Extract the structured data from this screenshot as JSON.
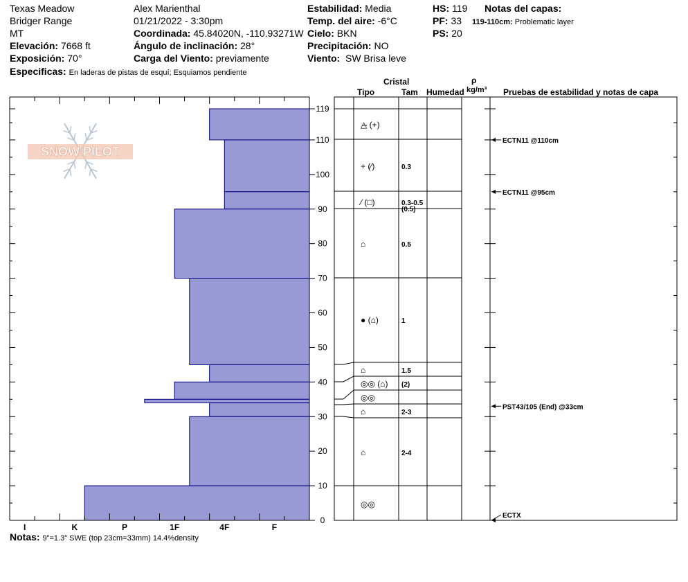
{
  "header": {
    "location": "Texas Meadow",
    "range": "Bridger Range",
    "state": "MT",
    "elevation_label": "Elevación:",
    "elevation_value": "7668 ft",
    "aspect_label": "Exposición:",
    "aspect_value": "70°",
    "specifics_label": "Especificas:",
    "specifics_value": "En laderas de pistas de esquí; Esquiamos pendiente",
    "observer": "Alex Marienthal",
    "datetime": "01/21/2022 - 3:30pm",
    "coord_label": "Coordinada:",
    "coord_value": "45.84020N, -110.93271W",
    "incline_label": "Ángulo de inclinación:",
    "incline_value": "28°",
    "wind_load_label": "Carga del Viento:",
    "wind_load_value": "previamente",
    "stability_label": "Estabilidad:",
    "stability_value": "Media",
    "air_temp_label": "Temp. del aire:",
    "air_temp_value": "-6°C",
    "sky_label": "Cielo:",
    "sky_value": "BKN",
    "precip_label": "Precipitación:",
    "precip_value": "NO",
    "wind_label": "Viento:",
    "wind_value": "SW  Brisa leve",
    "hs_label": "HS:",
    "hs_value": "119",
    "pf_label": "PF:",
    "pf_value": "33",
    "ps_label": "PS:",
    "ps_value": "20",
    "layer_notes_label": "Notas del capas:",
    "layer_note_range": "119-110cm:",
    "layer_note_text": "Problematic layer"
  },
  "logo_text": "SNOW PILOT",
  "columns": {
    "cristal": "Cristal",
    "tipo": "Tipo",
    "tam": "Tam",
    "humedad": "Humedad",
    "rho": "ρ",
    "density_unit": "kg/m³",
    "tests": "Pruebas de estabilidad y notas de capa"
  },
  "notes_label": "Notas:",
  "notes_value": "9\"=1.3\" SWE (top 23cm=33mm) 14.4%density",
  "chart_data": {
    "type": "bar",
    "orientation": "horizontal-step",
    "hardness_scale": [
      "I",
      "K",
      "P",
      "1F",
      "4F",
      "F"
    ],
    "y_ticks": [
      0,
      10,
      20,
      30,
      40,
      50,
      60,
      70,
      80,
      90,
      100,
      110,
      119
    ],
    "ylim": [
      0,
      119
    ],
    "bar_color": "#9999d6",
    "layers": [
      {
        "top": 119,
        "bottom": 110,
        "hardness": 2.0,
        "tipo": "△̶ (+)",
        "tam": ""
      },
      {
        "top": 110,
        "bottom": 95,
        "hardness": 1.7,
        "tipo": "+ (⁄)",
        "tam": "0.3"
      },
      {
        "top": 95,
        "bottom": 90,
        "hardness": 1.7,
        "tipo": "⁄ (□)",
        "tam": "0.3-0.5",
        "tam2": "(0.5)"
      },
      {
        "top": 90,
        "bottom": 70,
        "hardness": 2.7,
        "tipo": "⌂",
        "tam": "0.5"
      },
      {
        "top": 70,
        "bottom": 45,
        "hardness": 2.4,
        "tipo": "● (⌂)",
        "tam": "1"
      },
      {
        "top": 45,
        "bottom": 40,
        "hardness": 2.0,
        "tipo": "⌂",
        "tam": "1.5"
      },
      {
        "top": 40,
        "bottom": 35,
        "hardness": 2.7,
        "tipo": "◎◎ (⌂)",
        "tam": "(2)"
      },
      {
        "top": 35,
        "bottom": 34,
        "hardness": 3.3,
        "tipo": "◎◎",
        "tam": ""
      },
      {
        "top": 34,
        "bottom": 30,
        "hardness": 2.0,
        "tipo": "⌂",
        "tam": "2-3"
      },
      {
        "top": 30,
        "bottom": 10,
        "hardness": 2.4,
        "tipo": "⌂",
        "tam": "2-4"
      },
      {
        "top": 10,
        "bottom": 0,
        "hardness": 4.5,
        "tipo": "◎◎",
        "tam": ""
      }
    ],
    "tests": [
      {
        "depth": 110,
        "label": "ECTN11 @110cm"
      },
      {
        "depth": 95,
        "label": "ECTN11 @95cm"
      },
      {
        "depth": 33,
        "label": "PST43/105 (End) @33cm"
      },
      {
        "depth": 0,
        "label": "ECTX"
      }
    ]
  }
}
